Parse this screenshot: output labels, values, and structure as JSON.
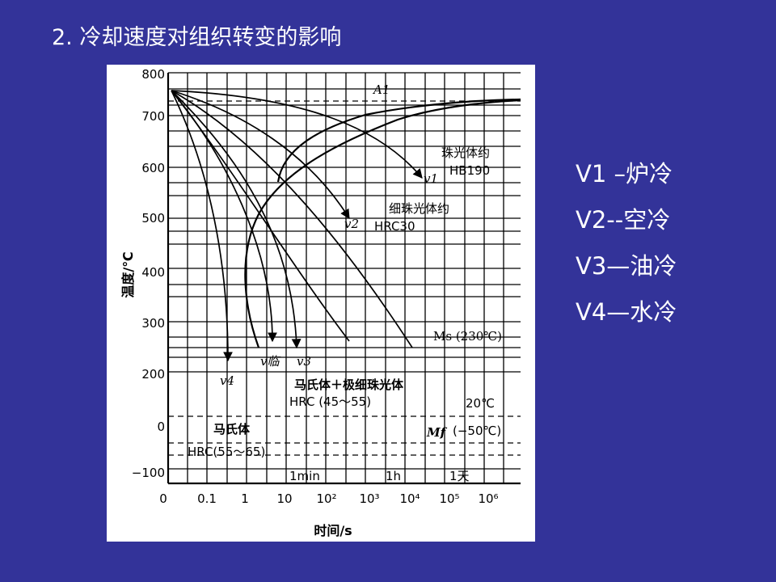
{
  "slide": {
    "title": "2. 冷却速度对组织转变的影响"
  },
  "figure": {
    "y_label": "温度/℃",
    "x_label": "时间/s",
    "y_ticks": [
      "800",
      "700",
      "600",
      "500",
      "400",
      "300",
      "200",
      "0",
      "−100"
    ],
    "x_ticks": [
      "0",
      "0.1",
      "1",
      "10",
      "10²",
      "10³",
      "10⁴",
      "10⁵",
      "10⁶"
    ],
    "time_markers": [
      "1min",
      "1h",
      "1天"
    ],
    "curve_labels": {
      "v1": "v1",
      "v2": "v2",
      "v3": "v3",
      "v4": "v4",
      "v_crit": "v临"
    },
    "annotations": {
      "a1": "A1",
      "ms": "Ms (230℃)",
      "mf_symbol": "Mf",
      "mf_temp_20": "20℃",
      "mf_temp_neg50": "(−50℃)",
      "pearlite": "珠光体约",
      "pearlite_hb": "HB190",
      "fine_pearlite": "细珠光体约",
      "fine_pearlite_hrc": "HRC30",
      "martensite_fine": "马氏体＋极细珠光体",
      "martensite_fine_hrc": "HRC (45～55)",
      "martensite": "马氏体",
      "martensite_hrc": "HRC(55～65)"
    }
  },
  "legend": {
    "items": [
      "V1 –炉冷",
      "V2--空冷",
      "V3—油冷",
      "V4—水冷"
    ]
  }
}
